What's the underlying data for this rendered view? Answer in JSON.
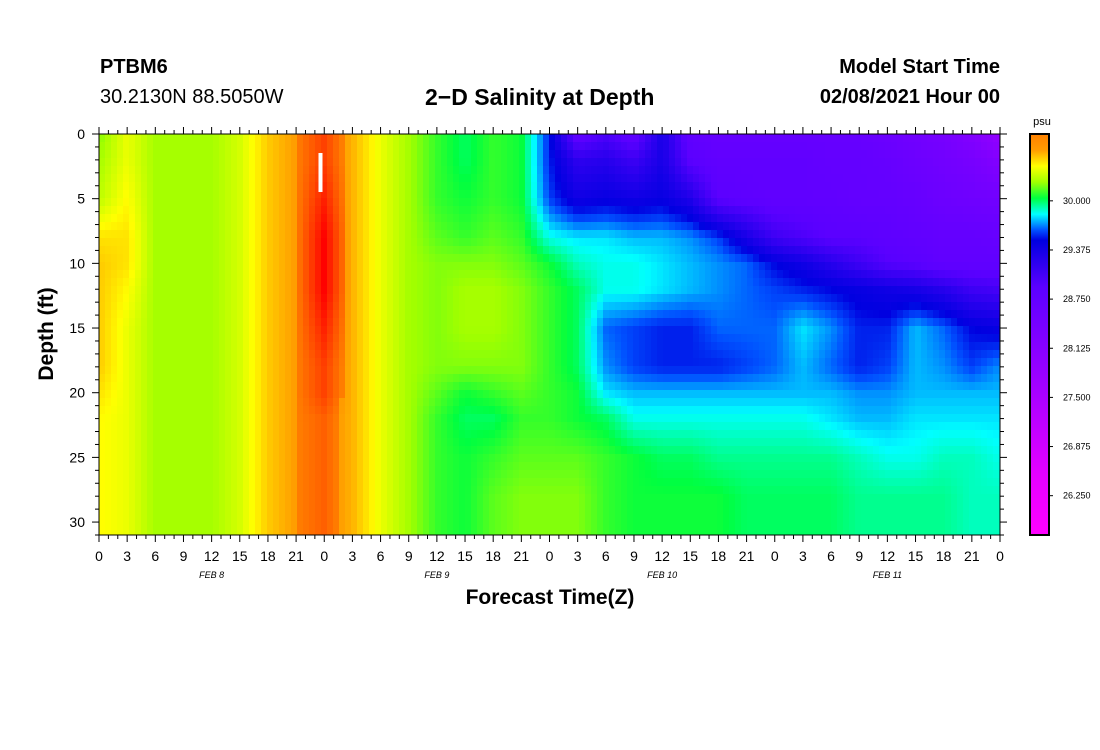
{
  "header": {
    "station": "PTBM6",
    "coords": "30.2130N 88.5050W",
    "title": "2−D Salinity at Depth",
    "model_start_label": "Model Start Time",
    "model_start_value": "02/08/2021 Hour 00"
  },
  "chart_data": {
    "type": "heatmap",
    "title": "2−D Salinity at Depth",
    "xlabel": "Forecast Time(Z)",
    "ylabel": "Depth (ft)",
    "x_ticks": [
      "0",
      "3",
      "6",
      "9",
      "12",
      "15",
      "18",
      "21",
      "0",
      "3",
      "6",
      "9",
      "12",
      "15",
      "18",
      "21",
      "0",
      "3",
      "6",
      "9",
      "12",
      "15",
      "18",
      "21",
      "0",
      "3",
      "6",
      "9",
      "12",
      "15",
      "18",
      "21",
      "0"
    ],
    "x_range_hours": [
      0,
      96
    ],
    "day_labels": [
      {
        "label": "FEB 8",
        "hour": 12
      },
      {
        "label": "FEB 9",
        "hour": 36
      },
      {
        "label": "FEB 10",
        "hour": 60
      },
      {
        "label": "FEB 11",
        "hour": 84
      }
    ],
    "y_ticks": [
      "0",
      "5",
      "10",
      "15",
      "20",
      "25",
      "30"
    ],
    "y_range_ft": [
      0,
      31
    ],
    "now_marker_hour": 23.6,
    "colorbar": {
      "unit": "psu",
      "range": [
        25.75,
        30.85
      ],
      "tick_values": [
        "30.000",
        "29.375",
        "28.750",
        "28.125",
        "27.500",
        "26.875",
        "26.250"
      ]
    },
    "salinity_grid": {
      "x_hours": [
        0,
        3,
        6,
        9,
        12,
        15,
        18,
        21,
        24,
        27,
        30,
        33,
        36,
        39,
        42,
        45,
        48,
        51,
        54,
        57,
        60,
        63,
        66,
        69,
        72,
        75,
        78,
        81,
        84,
        87,
        90,
        93,
        96
      ],
      "depths_ft": [
        0,
        2,
        5,
        8,
        10,
        12,
        15,
        18,
        20,
        22,
        25,
        28,
        31
      ],
      "rows": [
        [
          30.2,
          30.4,
          30.25,
          30.25,
          30.25,
          30.35,
          30.55,
          30.65,
          30.75,
          30.6,
          30.4,
          30.25,
          30.1,
          30.0,
          30.1,
          30.05,
          29.55,
          28.8,
          29.0,
          28.8,
          29.35,
          28.8,
          28.7,
          28.7,
          28.7,
          28.7,
          28.7,
          28.7,
          28.6,
          28.5,
          28.4,
          28.2,
          27.9
        ],
        [
          30.25,
          30.4,
          30.25,
          30.25,
          30.25,
          30.35,
          30.55,
          30.65,
          30.75,
          30.6,
          30.4,
          30.25,
          30.1,
          30.0,
          30.1,
          30.05,
          29.55,
          29.2,
          29.25,
          29.1,
          29.35,
          28.9,
          28.8,
          28.8,
          28.8,
          28.8,
          28.75,
          28.75,
          28.7,
          28.6,
          28.5,
          28.4,
          28.2
        ],
        [
          30.3,
          30.45,
          30.25,
          30.25,
          30.25,
          30.35,
          30.55,
          30.65,
          30.8,
          30.6,
          30.4,
          30.25,
          30.1,
          30.05,
          30.1,
          30.05,
          29.6,
          29.4,
          29.45,
          29.4,
          29.45,
          29.3,
          28.9,
          28.85,
          28.8,
          28.8,
          28.8,
          28.75,
          28.75,
          28.7,
          28.6,
          28.55,
          28.5
        ],
        [
          30.5,
          30.5,
          30.25,
          30.25,
          30.25,
          30.35,
          30.55,
          30.65,
          30.85,
          30.6,
          30.4,
          30.25,
          30.15,
          30.1,
          30.15,
          30.1,
          29.85,
          29.8,
          29.8,
          29.75,
          29.75,
          29.7,
          29.6,
          29.35,
          29.1,
          29.0,
          28.9,
          28.9,
          28.85,
          28.8,
          28.75,
          28.75,
          28.7
        ],
        [
          30.55,
          30.5,
          30.25,
          30.25,
          30.25,
          30.35,
          30.55,
          30.65,
          30.85,
          30.6,
          30.4,
          30.25,
          30.2,
          30.2,
          30.2,
          30.15,
          30.05,
          29.9,
          29.85,
          29.85,
          29.8,
          29.75,
          29.7,
          29.65,
          29.5,
          29.4,
          29.25,
          29.1,
          28.95,
          28.9,
          28.8,
          28.8,
          28.8
        ],
        [
          30.55,
          30.45,
          30.25,
          30.25,
          30.25,
          30.35,
          30.55,
          30.65,
          30.85,
          30.6,
          30.4,
          30.25,
          30.2,
          30.25,
          30.25,
          30.2,
          30.1,
          30.0,
          29.85,
          29.85,
          29.8,
          29.75,
          29.7,
          29.65,
          29.6,
          29.55,
          29.5,
          29.45,
          29.4,
          29.35,
          29.25,
          29.1,
          29.05
        ],
        [
          30.55,
          30.4,
          30.25,
          30.25,
          30.25,
          30.35,
          30.55,
          30.65,
          30.8,
          30.6,
          30.4,
          30.25,
          30.2,
          30.25,
          30.25,
          30.2,
          30.1,
          30.0,
          29.65,
          29.6,
          29.55,
          29.55,
          29.65,
          29.65,
          29.65,
          29.8,
          29.7,
          29.55,
          29.55,
          29.75,
          29.65,
          29.5,
          29.45
        ],
        [
          30.55,
          30.4,
          30.25,
          30.25,
          30.25,
          30.35,
          30.55,
          30.65,
          30.75,
          30.6,
          30.4,
          30.25,
          30.2,
          30.2,
          30.2,
          30.2,
          30.1,
          30.0,
          29.7,
          29.6,
          29.55,
          29.55,
          29.55,
          29.6,
          29.65,
          29.75,
          29.65,
          29.55,
          29.6,
          29.75,
          29.7,
          29.6,
          29.7
        ],
        [
          30.5,
          30.4,
          30.25,
          30.25,
          30.25,
          30.35,
          30.55,
          30.65,
          30.75,
          30.6,
          30.4,
          30.25,
          30.15,
          30.05,
          30.1,
          30.15,
          30.1,
          30.05,
          29.8,
          29.75,
          29.75,
          29.75,
          29.75,
          29.75,
          29.75,
          29.75,
          29.75,
          29.7,
          29.7,
          29.75,
          29.75,
          29.75,
          29.75
        ],
        [
          30.45,
          30.4,
          30.25,
          30.25,
          30.25,
          30.35,
          30.55,
          30.65,
          30.7,
          30.6,
          30.4,
          30.25,
          30.1,
          30.0,
          30.0,
          30.1,
          30.1,
          30.05,
          30.0,
          29.85,
          29.85,
          29.85,
          29.85,
          29.85,
          29.85,
          29.85,
          29.8,
          29.75,
          29.75,
          29.8,
          29.8,
          29.8,
          29.8
        ],
        [
          30.45,
          30.4,
          30.25,
          30.25,
          30.25,
          30.35,
          30.55,
          30.65,
          30.7,
          30.6,
          30.4,
          30.25,
          30.1,
          30.05,
          30.1,
          30.15,
          30.15,
          30.15,
          30.1,
          30.05,
          30.0,
          30.0,
          29.95,
          29.95,
          29.95,
          29.95,
          29.95,
          29.9,
          29.85,
          29.85,
          29.9,
          29.9,
          29.85
        ],
        [
          30.45,
          30.4,
          30.25,
          30.25,
          30.25,
          30.35,
          30.55,
          30.65,
          30.7,
          30.6,
          30.4,
          30.25,
          30.1,
          30.05,
          30.15,
          30.2,
          30.2,
          30.2,
          30.1,
          30.05,
          30.05,
          30.05,
          30.05,
          30.0,
          30.0,
          30.0,
          30.0,
          29.95,
          29.95,
          29.95,
          29.95,
          29.9,
          29.9
        ],
        [
          30.45,
          30.4,
          30.25,
          30.25,
          30.25,
          30.35,
          30.55,
          30.65,
          30.7,
          30.6,
          30.4,
          30.25,
          30.1,
          30.05,
          30.15,
          30.2,
          30.2,
          30.2,
          30.1,
          30.05,
          30.05,
          30.05,
          30.05,
          30.0,
          30.0,
          30.0,
          30.0,
          29.95,
          29.95,
          29.95,
          29.95,
          29.9,
          29.9
        ]
      ]
    }
  }
}
